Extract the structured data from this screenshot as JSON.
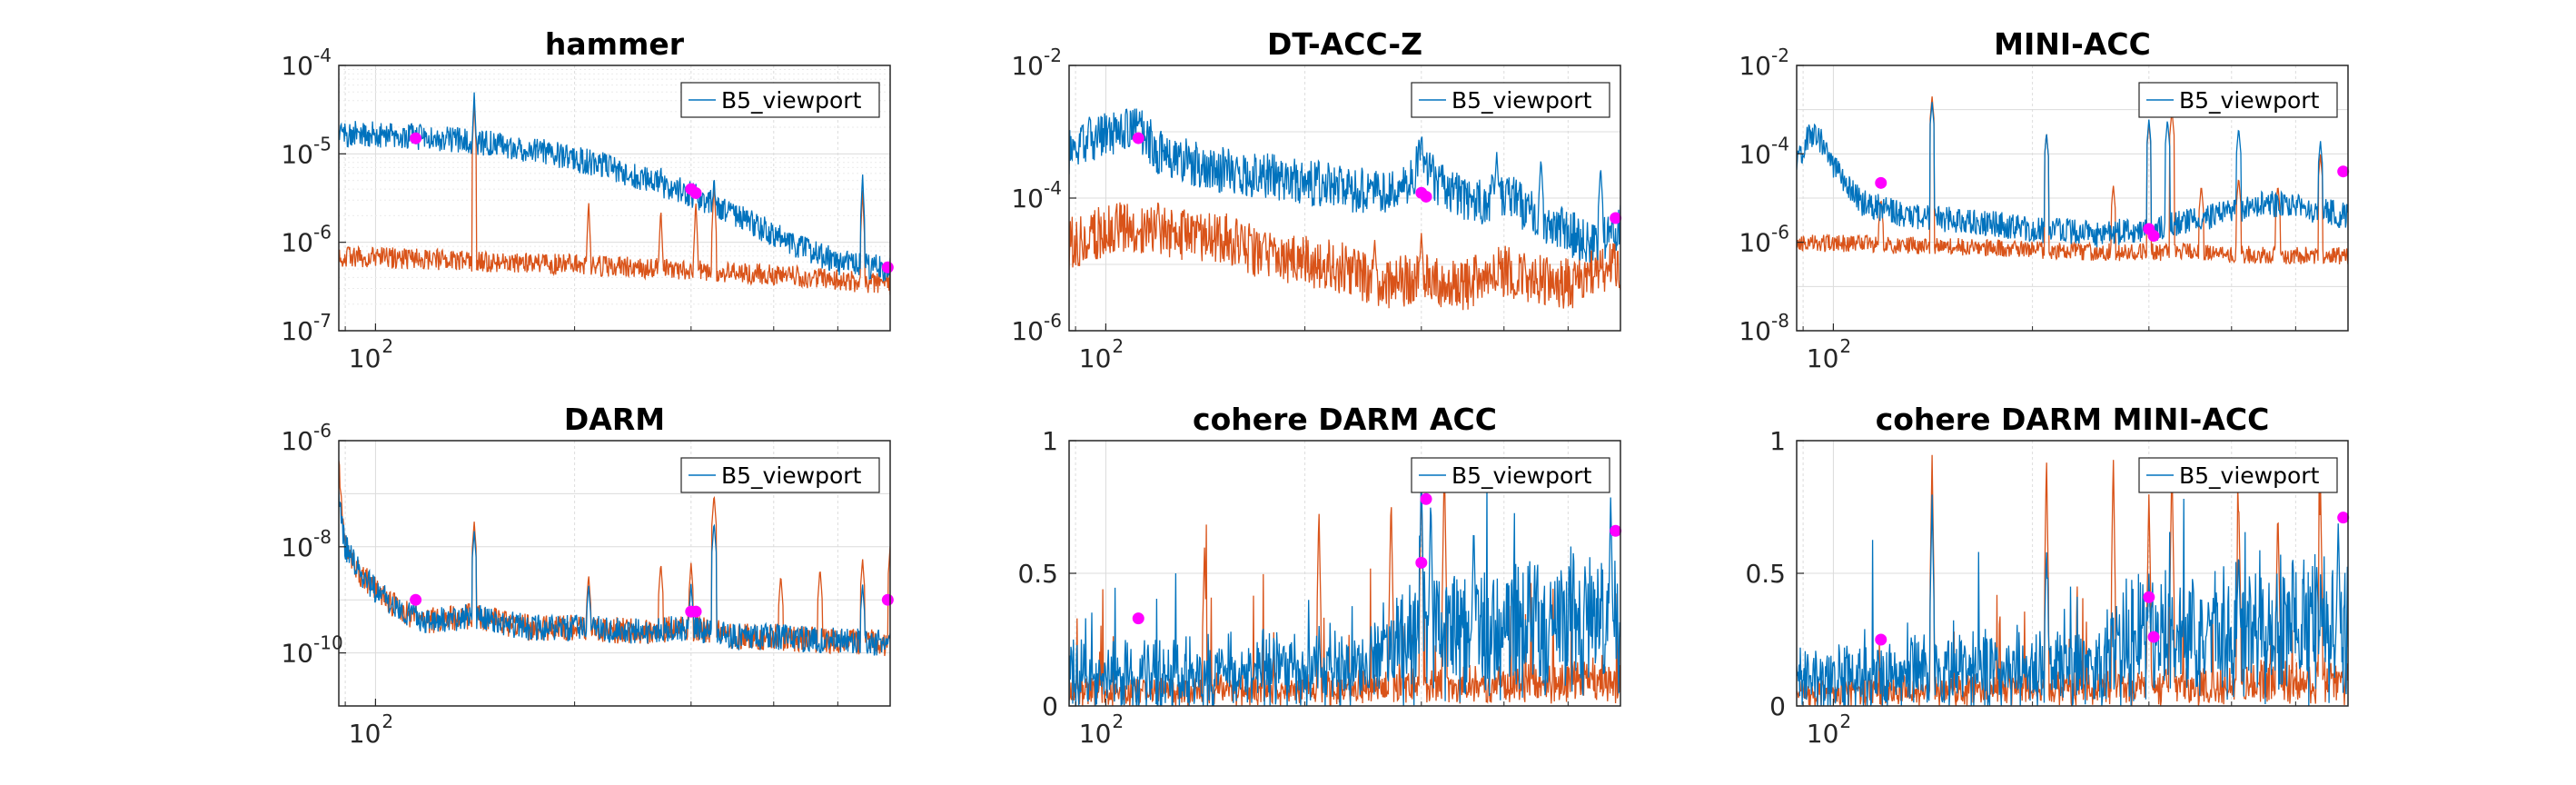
{
  "colors": {
    "series_blue": "#0072BD",
    "series_orange": "#D95319",
    "marker": "#FF00FF",
    "axis": "#262626",
    "grid": "#DCDCDC"
  },
  "legend_label": "B5_viewport",
  "chart_data": [
    {
      "type": "line",
      "title": "hammer",
      "xscale": "log",
      "yscale": "log",
      "xlim": [
        88,
        600
      ],
      "ylim": [
        1e-07,
        0.0001
      ],
      "xticks": [
        {
          "value": 100,
          "label": "10",
          "exp": "2"
        }
      ],
      "yticks": [
        {
          "value": 0.0001,
          "label": "10",
          "exp": "-4"
        },
        {
          "value": 1e-05,
          "label": "10",
          "exp": "-5"
        },
        {
          "value": 1e-06,
          "label": "10",
          "exp": "-6"
        },
        {
          "value": 1e-07,
          "label": "10",
          "exp": "-7"
        }
      ],
      "grid": true,
      "minor_grid": true,
      "legend": "top-right",
      "series": [
        {
          "name": "B5_viewport",
          "color": "blue",
          "x": [
            88,
            100,
            115,
            130,
            150,
            180,
            220,
            260,
            300,
            340,
            380,
            420,
            460,
            500,
            550,
            600
          ],
          "y": [
            1.7e-05,
            1.65e-05,
            1.55e-05,
            1.45e-05,
            1.3e-05,
            1.05e-05,
            7.5e-06,
            5e-06,
            3.5e-06,
            2.3e-06,
            1.5e-06,
            1e-06,
            7.5e-07,
            6e-07,
            5.3e-07,
            5e-07
          ],
          "noise": 0.15,
          "spikes": [
            [
              141,
              5e-05
            ],
            [
              270,
              8e-06
            ],
            [
              305,
              5e-06
            ],
            [
              325,
              6e-06
            ],
            [
              545,
              6e-06
            ]
          ]
        },
        {
          "name": "",
          "color": "orange",
          "x": [
            88,
            150,
            250,
            350,
            450,
            600
          ],
          "y": [
            7e-07,
            6e-07,
            5.2e-07,
            4.5e-07,
            4e-07,
            3.3e-07
          ],
          "noise": 0.12,
          "spikes": [
            [
              141,
              4e-05
            ],
            [
              210,
              3e-06
            ],
            [
              270,
              2.5e-06
            ],
            [
              305,
              3e-06
            ],
            [
              325,
              5e-06
            ],
            [
              545,
              4e-06
            ]
          ]
        }
      ],
      "markers": [
        {
          "x": 115,
          "y": 1.5e-05
        },
        {
          "x": 300,
          "y": 4e-06
        },
        {
          "x": 305,
          "y": 3.6e-06
        },
        {
          "x": 595,
          "y": 5.2e-07
        }
      ]
    },
    {
      "type": "line",
      "title": "DT-ACC-Z",
      "xscale": "log",
      "yscale": "log",
      "xlim": [
        88,
        600
      ],
      "ylim": [
        1e-06,
        0.01
      ],
      "xticks": [
        {
          "value": 100,
          "label": "10",
          "exp": "2"
        }
      ],
      "yticks": [
        {
          "value": 0.01,
          "label": "10",
          "exp": "-2"
        },
        {
          "value": 0.0001,
          "label": "10",
          "exp": "-4"
        },
        {
          "value": 1e-06,
          "label": "10",
          "exp": "-6"
        }
      ],
      "grid": true,
      "minor_grid": false,
      "legend": "top-right",
      "series": [
        {
          "name": "B5_viewport",
          "color": "blue",
          "x": [
            88,
            95,
            105,
            112,
            120,
            140,
            170,
            200,
            240,
            280,
            300,
            320,
            360,
            400,
            450,
            500,
            550,
            600
          ],
          "y": [
            0.0005,
            0.0008,
            0.001,
            0.0012,
            0.0005,
            0.0003,
            0.00022,
            0.00018,
            0.00013,
            0.00012,
            0.0004,
            0.00015,
            8e-05,
            0.00012,
            5e-05,
            3e-05,
            2e-05,
            4e-05
          ],
          "noise": 0.35,
          "spikes": [
            [
              300,
              0.0008
            ],
            [
              390,
              0.0005
            ],
            [
              455,
              0.0004
            ],
            [
              560,
              0.0003
            ]
          ]
        },
        {
          "name": "",
          "color": "orange",
          "x": [
            88,
            105,
            120,
            150,
            180,
            220,
            260,
            300,
            350,
            400,
            450,
            500,
            550,
            600
          ],
          "y": [
            2e-05,
            4e-05,
            3e-05,
            2.5e-05,
            1.2e-05,
            1e-05,
            5e-06,
            6e-06,
            5e-06,
            8e-06,
            6e-06,
            5e-06,
            7e-06,
            1e-05
          ],
          "noise": 0.4,
          "spikes": [
            [
              120,
              0.0001
            ],
            [
              255,
              2.5e-05
            ],
            [
              300,
              3e-05
            ]
          ]
        }
      ],
      "markers": [
        {
          "x": 112,
          "y": 0.0008
        },
        {
          "x": 300,
          "y": 0.00012
        },
        {
          "x": 305,
          "y": 0.000105
        },
        {
          "x": 590,
          "y": 5e-05
        }
      ]
    },
    {
      "type": "line",
      "title": "MINI-ACC",
      "xscale": "log",
      "yscale": "log",
      "xlim": [
        88,
        600
      ],
      "ylim": [
        1e-08,
        0.01
      ],
      "xticks": [
        {
          "value": 100,
          "label": "10",
          "exp": "2"
        }
      ],
      "yticks": [
        {
          "value": 0.01,
          "label": "10",
          "exp": "-2"
        },
        {
          "value": 0.0001,
          "label": "10",
          "exp": "-4"
        },
        {
          "value": 1e-06,
          "label": "10",
          "exp": "-6"
        },
        {
          "value": 1e-08,
          "label": "10",
          "exp": "-8"
        }
      ],
      "grid": true,
      "minor_grid": false,
      "legend": "top-right",
      "series": [
        {
          "name": "B5_viewport",
          "color": "blue",
          "x": [
            88,
            92,
            96,
            100,
            110,
            130,
            160,
            200,
            250,
            300,
            350,
            400,
            450,
            500,
            550,
            600
          ],
          "y": [
            5e-05,
            0.0003,
            0.0002,
            5e-05,
            8e-06,
            4e-06,
            3e-06,
            2e-06,
            1.5e-06,
            2e-06,
            3e-06,
            5e-06,
            8e-06,
            6e-06,
            5e-06,
            4e-06
          ],
          "noise": 0.3,
          "spikes": [
            [
              141,
              0.0015
            ],
            [
              210,
              0.0003
            ],
            [
              300,
              0.0006
            ],
            [
              320,
              0.0006
            ],
            [
              410,
              0.0004
            ],
            [
              545,
              0.0002
            ]
          ]
        },
        {
          "name": "",
          "color": "orange",
          "x": [
            88,
            150,
            250,
            350,
            450,
            600
          ],
          "y": [
            1e-06,
            8e-07,
            6e-07,
            6e-07,
            5e-07,
            5e-07
          ],
          "noise": 0.2,
          "spikes": [
            [
              118,
              1e-05
            ],
            [
              141,
              0.002
            ],
            [
              210,
              0.0003
            ],
            [
              265,
              2e-05
            ],
            [
              300,
              0.0005
            ],
            [
              325,
              0.001
            ],
            [
              360,
              2e-05
            ],
            [
              410,
              3e-05
            ],
            [
              470,
              2e-05
            ],
            [
              545,
              0.0001
            ]
          ]
        }
      ],
      "markers": [
        {
          "x": 118,
          "y": 2.2e-05
        },
        {
          "x": 300,
          "y": 2e-06
        },
        {
          "x": 305,
          "y": 1.4e-06
        },
        {
          "x": 590,
          "y": 4e-05
        }
      ]
    },
    {
      "type": "line",
      "title": "DARM",
      "xscale": "log",
      "yscale": "log",
      "xlim": [
        88,
        600
      ],
      "ylim": [
        1e-11,
        1e-06
      ],
      "xticks": [
        {
          "value": 100,
          "label": "10",
          "exp": "2"
        }
      ],
      "yticks": [
        {
          "value": 1e-06,
          "label": "10",
          "exp": "-6"
        },
        {
          "value": 1e-08,
          "label": "10",
          "exp": "-8"
        },
        {
          "value": 1e-10,
          "label": "10",
          "exp": "-10"
        }
      ],
      "grid": true,
      "minor_grid": false,
      "legend": "top-right",
      "series": [
        {
          "name": "B5_viewport",
          "color": "blue",
          "x": [
            88,
            90,
            95,
            100,
            110,
            120,
            140,
            170,
            200,
            250,
            300,
            350,
            400,
            450,
            500,
            550,
            600
          ],
          "y": [
            8e-08,
            1e-08,
            3e-09,
            1.5e-09,
            6e-10,
            4e-10,
            5e-10,
            3e-10,
            3e-10,
            2.5e-10,
            3e-10,
            2e-10,
            2e-10,
            1.8e-10,
            1.7e-10,
            1.6e-10,
            1.5e-10
          ],
          "noise": 0.25,
          "spikes": [
            [
              141,
              2e-08
            ],
            [
              210,
              2e-09
            ],
            [
              300,
              2e-09
            ],
            [
              325,
              3e-08
            ],
            [
              545,
              2e-09
            ]
          ]
        },
        {
          "name": "",
          "color": "orange",
          "x": [
            88,
            90,
            95,
            100,
            110,
            120,
            140,
            170,
            200,
            250,
            300,
            350,
            400,
            450,
            500,
            550,
            600
          ],
          "y": [
            3e-07,
            1e-08,
            3e-09,
            1.5e-09,
            6e-10,
            4e-10,
            5e-10,
            3e-10,
            3e-10,
            2.5e-10,
            3e-10,
            2e-10,
            2e-10,
            1.8e-10,
            1.7e-10,
            1.6e-10,
            1.5e-10
          ],
          "noise": 0.25,
          "spikes": [
            [
              141,
              3e-08
            ],
            [
              210,
              3e-09
            ],
            [
              270,
              5e-09
            ],
            [
              300,
              5e-09
            ],
            [
              325,
              1e-07
            ],
            [
              410,
              3e-09
            ],
            [
              470,
              4e-09
            ],
            [
              545,
              6e-09
            ],
            [
              600,
              1e-08
            ]
          ]
        }
      ],
      "markers": [
        {
          "x": 115,
          "y": 1e-09
        },
        {
          "x": 300,
          "y": 6e-10
        },
        {
          "x": 305,
          "y": 6e-10
        },
        {
          "x": 595,
          "y": 1e-09
        }
      ]
    },
    {
      "type": "line",
      "title": "cohere DARM ACC",
      "xscale": "log",
      "yscale": "linear",
      "xlim": [
        88,
        600
      ],
      "ylim": [
        0,
        1
      ],
      "xticks": [
        {
          "value": 100,
          "label": "10",
          "exp": "2"
        }
      ],
      "yticks": [
        {
          "value": 1,
          "label": "1",
          "exp": ""
        },
        {
          "value": 0.5,
          "label": "0.5",
          "exp": ""
        },
        {
          "value": 0,
          "label": "0",
          "exp": ""
        }
      ],
      "grid": true,
      "minor_grid": false,
      "legend": "top-right",
      "series": [
        {
          "name": "B5_viewport",
          "color": "blue",
          "x": [
            88,
            150,
            250,
            300,
            350,
            450,
            600
          ],
          "y": [
            0.1,
            0.12,
            0.15,
            0.3,
            0.25,
            0.3,
            0.3
          ],
          "noise": 0.15,
          "spikes": [
            [
              300,
              0.9
            ],
            [
              310,
              0.8
            ],
            [
              360,
              0.7
            ],
            [
              580,
              0.8
            ]
          ]
        },
        {
          "name": "",
          "color": "orange",
          "x": [
            88,
            200,
            400,
            600
          ],
          "y": [
            0.05,
            0.06,
            0.08,
            0.1
          ],
          "noise": 0.05,
          "spikes": [
            [
              141,
              0.6
            ],
            [
              210,
              0.75
            ],
            [
              270,
              0.8
            ],
            [
              300,
              0.85
            ],
            [
              325,
              0.95
            ]
          ]
        }
      ],
      "markers": [
        {
          "x": 112,
          "y": 0.33
        },
        {
          "x": 300,
          "y": 0.54
        },
        {
          "x": 305,
          "y": 0.78
        },
        {
          "x": 590,
          "y": 0.66
        }
      ]
    },
    {
      "type": "line",
      "title": "cohere DARM MINI-ACC",
      "xscale": "log",
      "yscale": "linear",
      "xlim": [
        88,
        600
      ],
      "ylim": [
        0,
        1
      ],
      "xticks": [
        {
          "value": 100,
          "label": "10",
          "exp": "2"
        }
      ],
      "yticks": [
        {
          "value": 1,
          "label": "1",
          "exp": ""
        },
        {
          "value": 0.5,
          "label": "0.5",
          "exp": ""
        },
        {
          "value": 0,
          "label": "0",
          "exp": ""
        }
      ],
      "grid": true,
      "minor_grid": false,
      "legend": "top-right",
      "series": [
        {
          "name": "B5_viewport",
          "color": "blue",
          "x": [
            88,
            150,
            250,
            300,
            350,
            450,
            600
          ],
          "y": [
            0.1,
            0.12,
            0.15,
            0.3,
            0.25,
            0.3,
            0.3
          ],
          "noise": 0.15,
          "spikes": [
            [
              141,
              0.8
            ],
            [
              210,
              0.6
            ],
            [
              300,
              0.5
            ],
            [
              410,
              0.6
            ],
            [
              580,
              0.7
            ]
          ]
        },
        {
          "name": "",
          "color": "orange",
          "x": [
            88,
            200,
            400,
            600
          ],
          "y": [
            0.05,
            0.06,
            0.08,
            0.1
          ],
          "noise": 0.05,
          "spikes": [
            [
              141,
              0.95
            ],
            [
              210,
              0.95
            ],
            [
              265,
              0.95
            ],
            [
              300,
              0.8
            ],
            [
              325,
              0.95
            ],
            [
              410,
              0.8
            ],
            [
              470,
              0.75
            ],
            [
              545,
              0.85
            ]
          ]
        }
      ],
      "markers": [
        {
          "x": 118,
          "y": 0.25
        },
        {
          "x": 300,
          "y": 0.41
        },
        {
          "x": 305,
          "y": 0.26
        },
        {
          "x": 590,
          "y": 0.71
        }
      ]
    }
  ]
}
